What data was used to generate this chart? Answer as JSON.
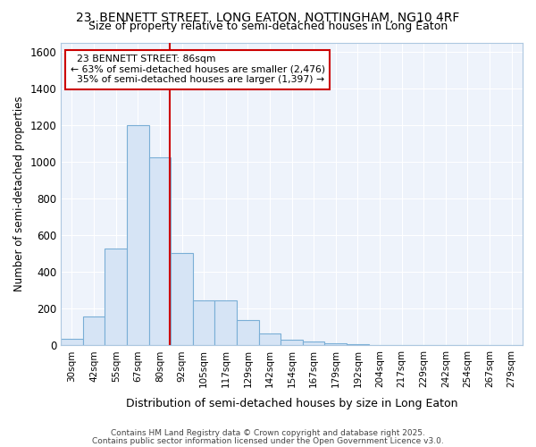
{
  "title_line1": "23, BENNETT STREET, LONG EATON, NOTTINGHAM, NG10 4RF",
  "title_line2": "Size of property relative to semi-detached houses in Long Eaton",
  "xlabel": "Distribution of semi-detached houses by size in Long Eaton",
  "ylabel": "Number of semi-detached properties",
  "categories": [
    "30sqm",
    "42sqm",
    "55sqm",
    "67sqm",
    "80sqm",
    "92sqm",
    "105sqm",
    "117sqm",
    "129sqm",
    "142sqm",
    "154sqm",
    "167sqm",
    "179sqm",
    "192sqm",
    "204sqm",
    "217sqm",
    "229sqm",
    "242sqm",
    "254sqm",
    "267sqm",
    "279sqm"
  ],
  "values": [
    35,
    160,
    530,
    1200,
    1025,
    505,
    247,
    247,
    140,
    65,
    30,
    20,
    12,
    5,
    3,
    2,
    1,
    0,
    0,
    0,
    0
  ],
  "bar_color": "#d6e4f5",
  "bar_edge_color": "#7aaed6",
  "vline_x": 4.45,
  "vline_color": "#cc0000",
  "property_label": "23 BENNETT STREET: 86sqm",
  "smaller_pct": "63%",
  "smaller_count": "2,476",
  "larger_pct": "35%",
  "larger_count": "1,397",
  "annotation_box_color": "#ffffff",
  "annotation_box_edge": "#cc0000",
  "bg_color": "#ffffff",
  "plot_bg_color": "#eef3fb",
  "grid_color": "#ffffff",
  "ylim": [
    0,
    1650
  ],
  "footer1": "Contains HM Land Registry data © Crown copyright and database right 2025.",
  "footer2": "Contains public sector information licensed under the Open Government Licence v3.0."
}
